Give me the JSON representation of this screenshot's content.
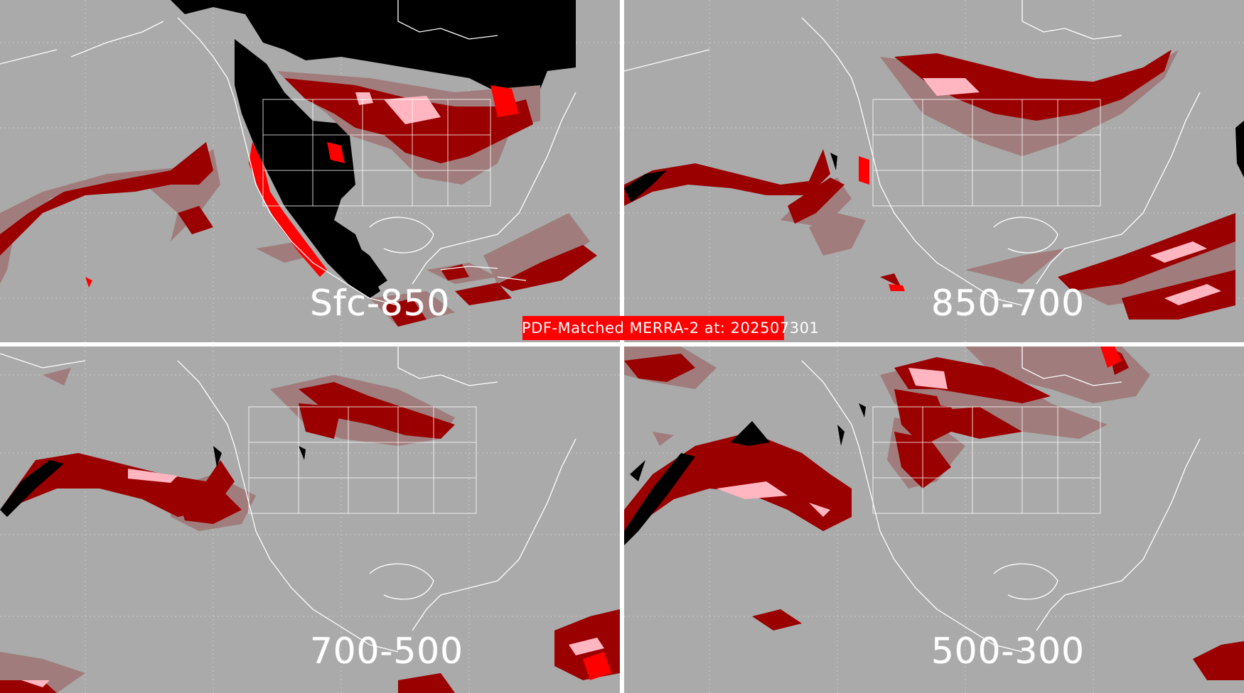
{
  "banner": {
    "text": "PDF-Matched MERRA-2 at: 202507301"
  },
  "panels": [
    {
      "label": "Sfc-850"
    },
    {
      "label": "850-700"
    },
    {
      "label": "700-500"
    },
    {
      "label": "500-300"
    }
  ],
  "colors": {
    "background": "#aaaaaa",
    "divider": "#ffffff",
    "coastline": "#ffffff",
    "class_light": "#a07c7c",
    "class_dark": "#9a0000",
    "class_red": "#ff0000",
    "class_pink": "#ffb6c1",
    "class_black": "#000000",
    "banner": "#ff0000"
  }
}
